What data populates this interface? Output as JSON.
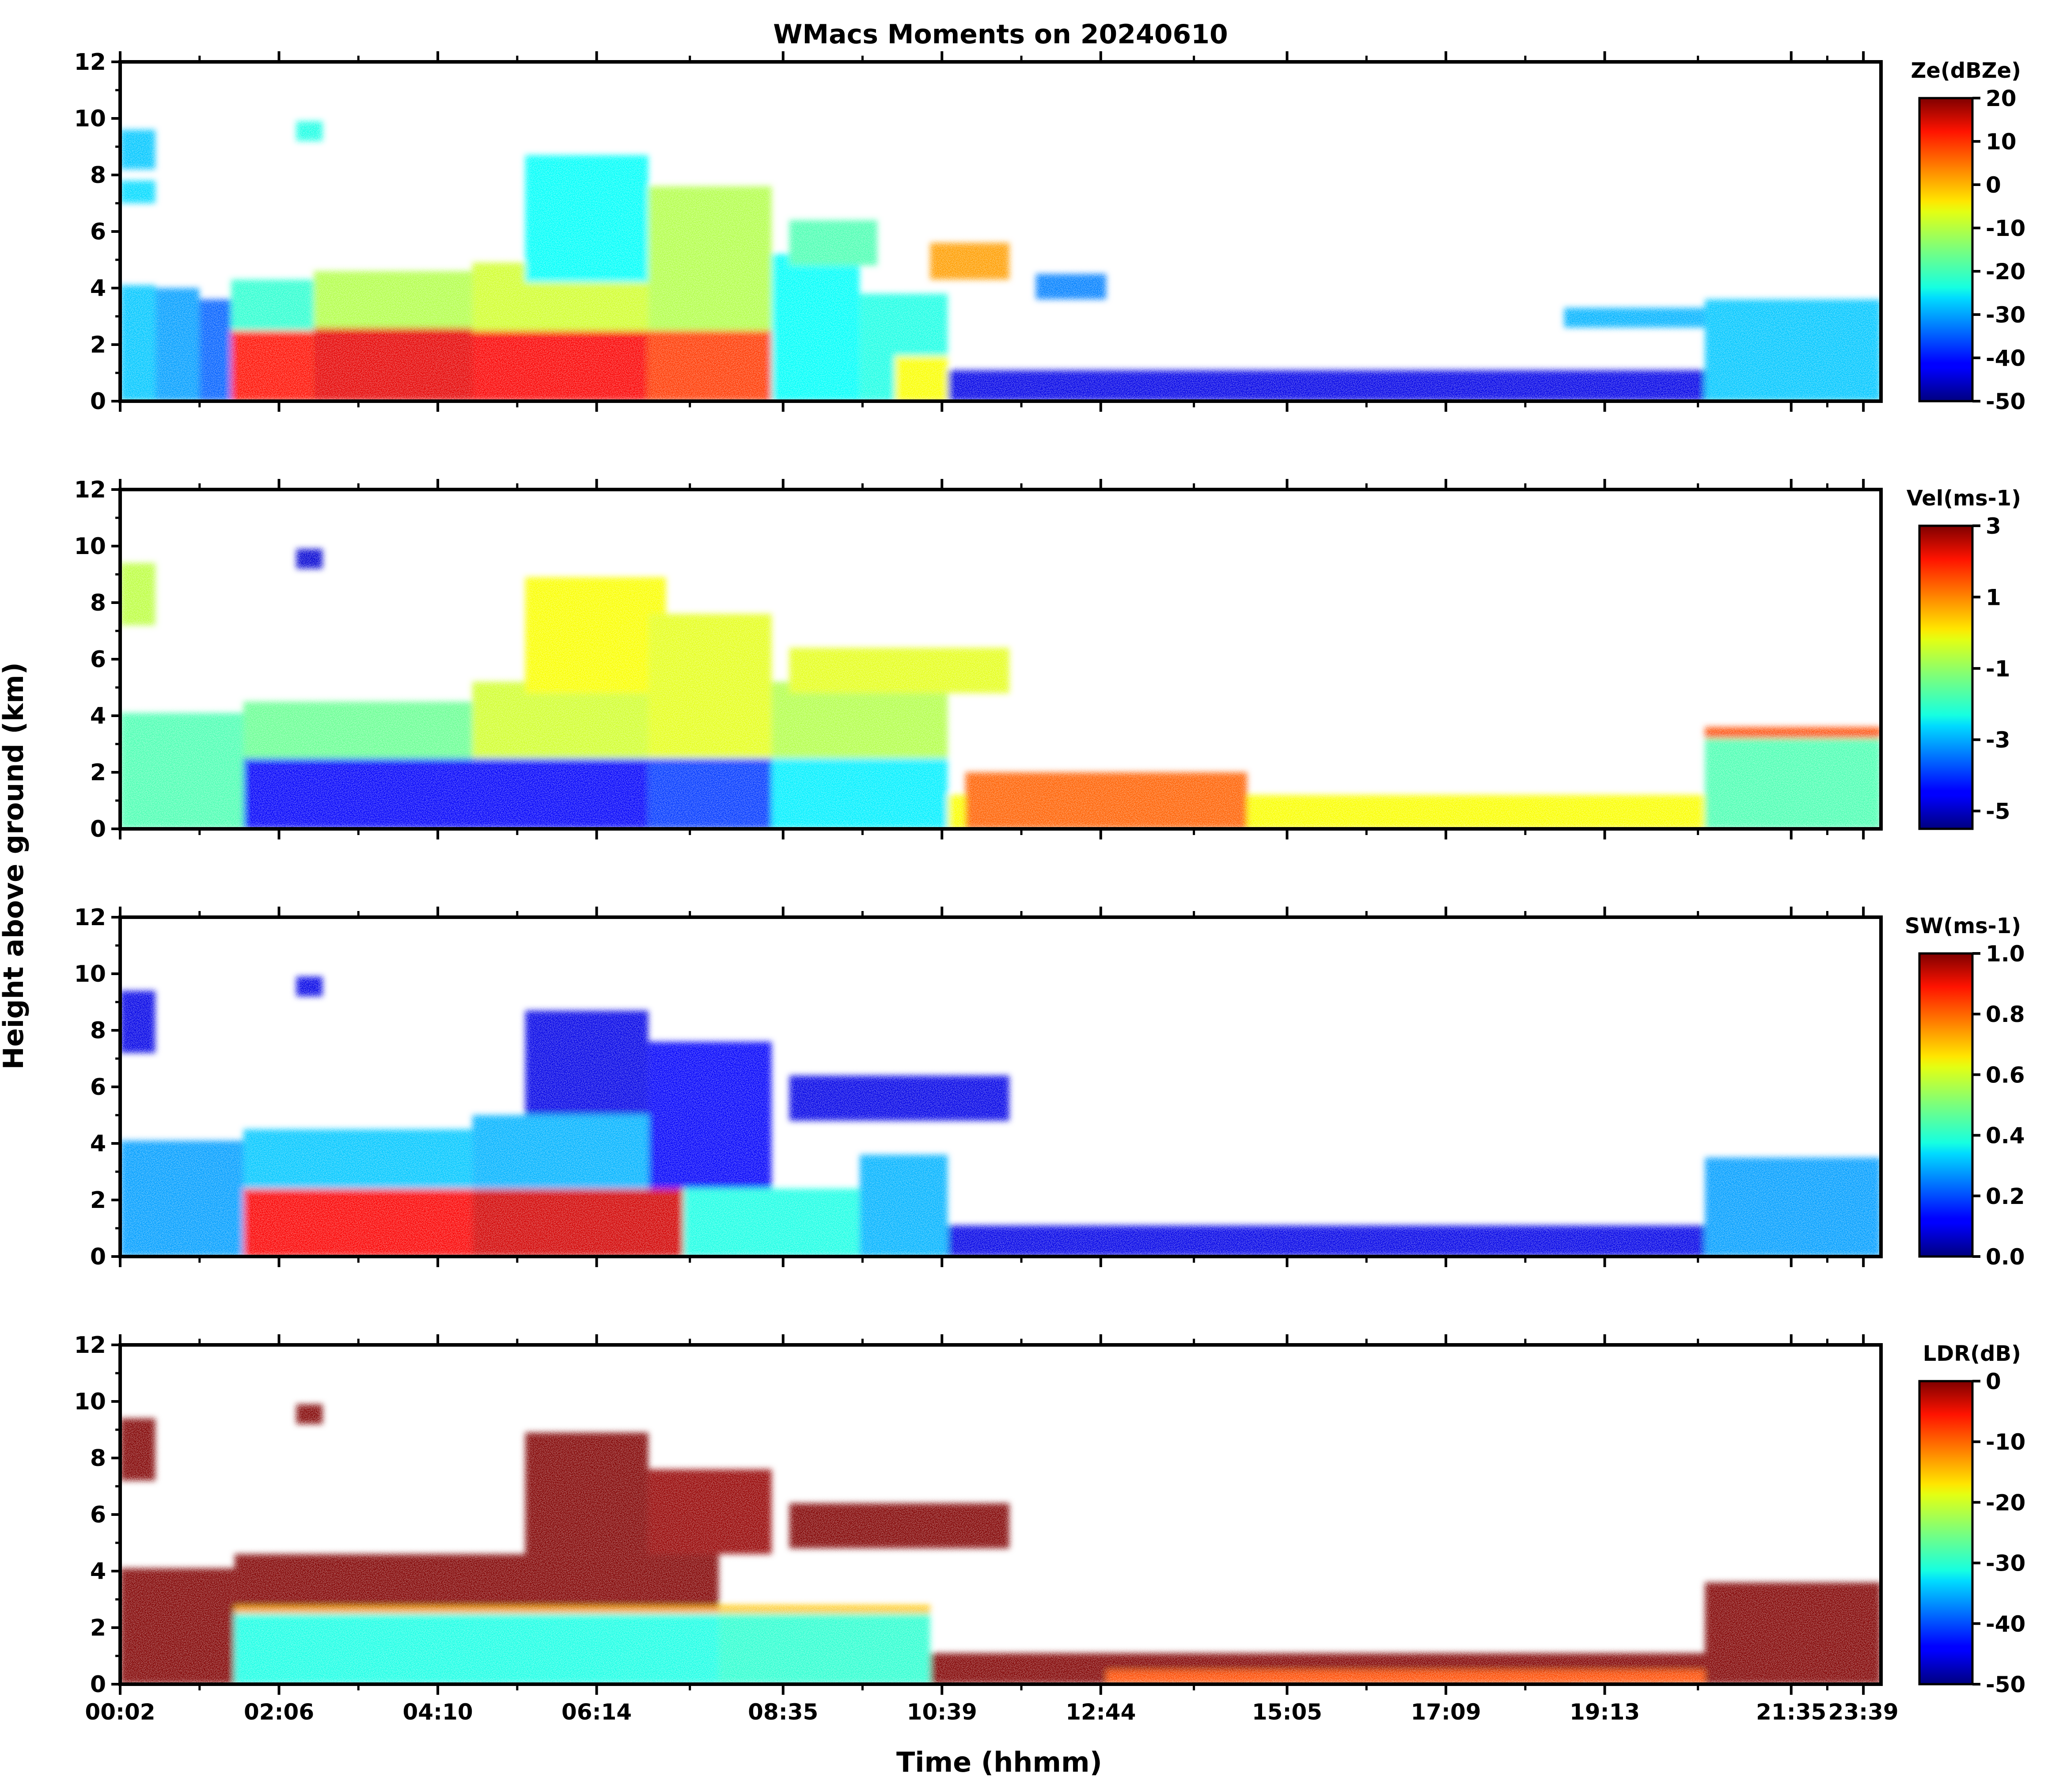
{
  "title": "WMacs Moments on 20240610",
  "shared_ylabel": "Height above ground (km)",
  "shared_xlabel": "Time (hhmm)",
  "x_tick_labels": [
    "00:02",
    "02:06",
    "04:10",
    "06:14",
    "08:35",
    "10:39",
    "12:44",
    "15:05",
    "17:09",
    "19:13",
    "21:35",
    "23:39"
  ],
  "y_tick_labels": [
    "0",
    "2",
    "4",
    "6",
    "8",
    "10",
    "12"
  ],
  "chart_data": [
    {
      "type": "heatmap",
      "variable": "Ze",
      "colorbar_label": "Ze(dBZe)",
      "colorbar_ticks": [
        "20",
        "10",
        "0",
        "-10",
        "-20",
        "-30",
        "-40",
        "-50"
      ],
      "clim": [
        -50,
        20
      ],
      "ylim": [
        0,
        12
      ],
      "colormap": "jet"
    },
    {
      "type": "heatmap",
      "variable": "Vel",
      "colorbar_label": "Vel(ms-1)",
      "colorbar_ticks": [
        "3",
        "1",
        "-1",
        "-3",
        "-5"
      ],
      "clim": [
        -5.5,
        3
      ],
      "ylim": [
        0,
        12
      ],
      "colormap": "jet"
    },
    {
      "type": "heatmap",
      "variable": "SW",
      "colorbar_label": "SW(ms-1)",
      "colorbar_ticks": [
        "1.0",
        "0.8",
        "0.6",
        "0.4",
        "0.2",
        "0.0"
      ],
      "clim": [
        0,
        1
      ],
      "ylim": [
        0,
        12
      ],
      "colormap": "jet"
    },
    {
      "type": "heatmap",
      "variable": "LDR",
      "colorbar_label": "LDR(dB)",
      "colorbar_ticks": [
        "0",
        "-10",
        "-20",
        "-30",
        "-40",
        "-50"
      ],
      "clim": [
        -50,
        0
      ],
      "ylim": [
        0,
        12
      ],
      "colormap": "jet"
    }
  ]
}
